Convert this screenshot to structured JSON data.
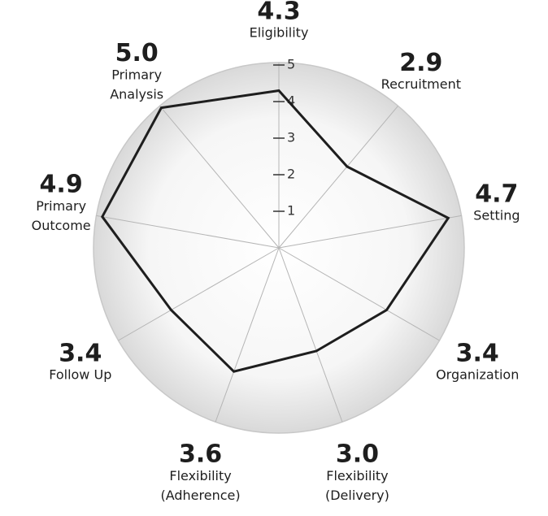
{
  "chart_data": {
    "type": "radar",
    "categories": [
      "Eligibility",
      "Recruitment",
      "Setting",
      "Organization",
      "Flexibility\n(Delivery)",
      "Flexibility\n(Adherence)",
      "Follow Up",
      "Primary\nOutcome",
      "Primary\nAnalysis"
    ],
    "values": [
      4.3,
      2.9,
      4.7,
      3.4,
      3.0,
      3.6,
      3.4,
      4.9,
      5.0
    ],
    "value_labels": [
      "4.3",
      "2.9",
      "4.7",
      "3.4",
      "3.0",
      "3.6",
      "3.4",
      "4.9",
      "5.0"
    ],
    "color": "#1e1e1e",
    "ylim": [
      0,
      5
    ],
    "yticks": [
      1,
      2,
      3,
      4,
      5
    ],
    "grid": true
  }
}
